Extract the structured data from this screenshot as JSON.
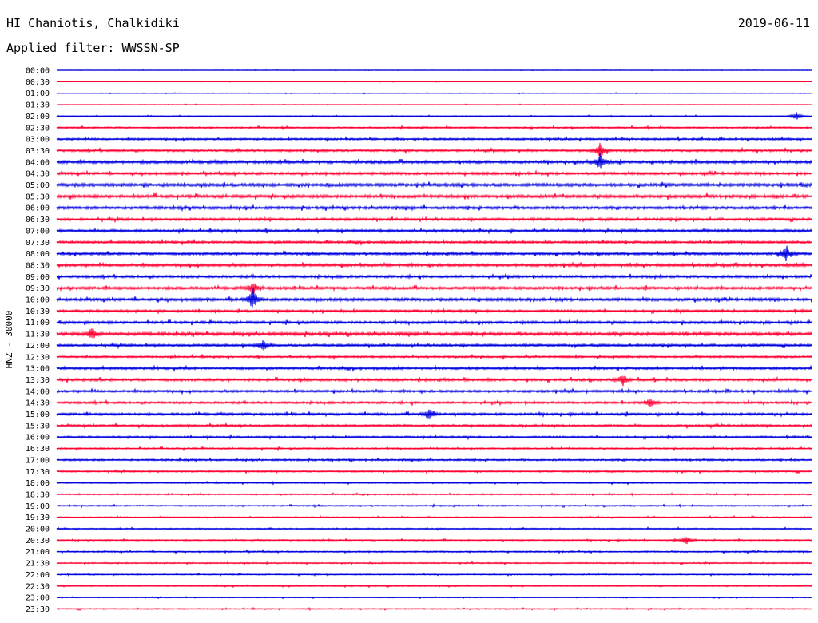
{
  "header": {
    "station": "HI Chaniotis, Chalkidiki",
    "date": "2019-06-11",
    "filter": "Applied filter: WWSSN-SP"
  },
  "chart_data": {
    "type": "line",
    "description_kind": "helicorder",
    "ylabel": "HNZ - 30000",
    "row_times": [
      "00:00",
      "00:30",
      "01:00",
      "01:30",
      "02:00",
      "02:30",
      "03:00",
      "03:30",
      "04:00",
      "04:30",
      "05:00",
      "05:30",
      "06:00",
      "06:30",
      "07:00",
      "07:30",
      "08:00",
      "08:30",
      "09:00",
      "09:30",
      "10:00",
      "10:30",
      "11:00",
      "11:30",
      "12:00",
      "12:30",
      "13:00",
      "13:30",
      "14:00",
      "14:30",
      "15:00",
      "15:30",
      "16:00",
      "16:30",
      "17:00",
      "17:30",
      "18:00",
      "18:30",
      "19:00",
      "19:30",
      "20:00",
      "20:30",
      "21:00",
      "21:30",
      "22:00",
      "22:30",
      "23:00",
      "23:30"
    ],
    "row_noise_level": [
      0.3,
      0.3,
      0.4,
      0.4,
      0.6,
      1.0,
      1.2,
      1.4,
      1.8,
      1.6,
      1.9,
      1.9,
      1.7,
      1.6,
      1.6,
      1.5,
      1.6,
      1.7,
      1.6,
      1.7,
      1.8,
      1.5,
      1.6,
      1.9,
      1.6,
      1.2,
      1.5,
      1.6,
      1.4,
      1.4,
      1.5,
      1.3,
      1.2,
      1.0,
      1.1,
      1.0,
      0.8,
      0.8,
      0.8,
      0.7,
      0.8,
      0.8,
      0.9,
      0.8,
      0.7,
      0.7,
      0.6,
      0.7
    ],
    "events": [
      {
        "row": 4,
        "minute": 29.4,
        "amp": 6
      },
      {
        "row": 7,
        "minute": 21.6,
        "amp": 12
      },
      {
        "row": 8,
        "minute": 21.6,
        "amp": 11
      },
      {
        "row": 16,
        "minute": 29.0,
        "amp": 10
      },
      {
        "row": 19,
        "minute": 7.8,
        "amp": 8
      },
      {
        "row": 20,
        "minute": 7.8,
        "amp": 14
      },
      {
        "row": 23,
        "minute": 1.4,
        "amp": 8
      },
      {
        "row": 24,
        "minute": 8.2,
        "amp": 7
      },
      {
        "row": 27,
        "minute": 22.5,
        "amp": 8
      },
      {
        "row": 29,
        "minute": 23.6,
        "amp": 6
      },
      {
        "row": 30,
        "minute": 14.8,
        "amp": 8
      },
      {
        "row": 41,
        "minute": 25.0,
        "amp": 6
      }
    ],
    "row_colors": [
      "#0000e0",
      "#ff0033"
    ],
    "x_range_minutes": [
      0,
      30
    ]
  }
}
